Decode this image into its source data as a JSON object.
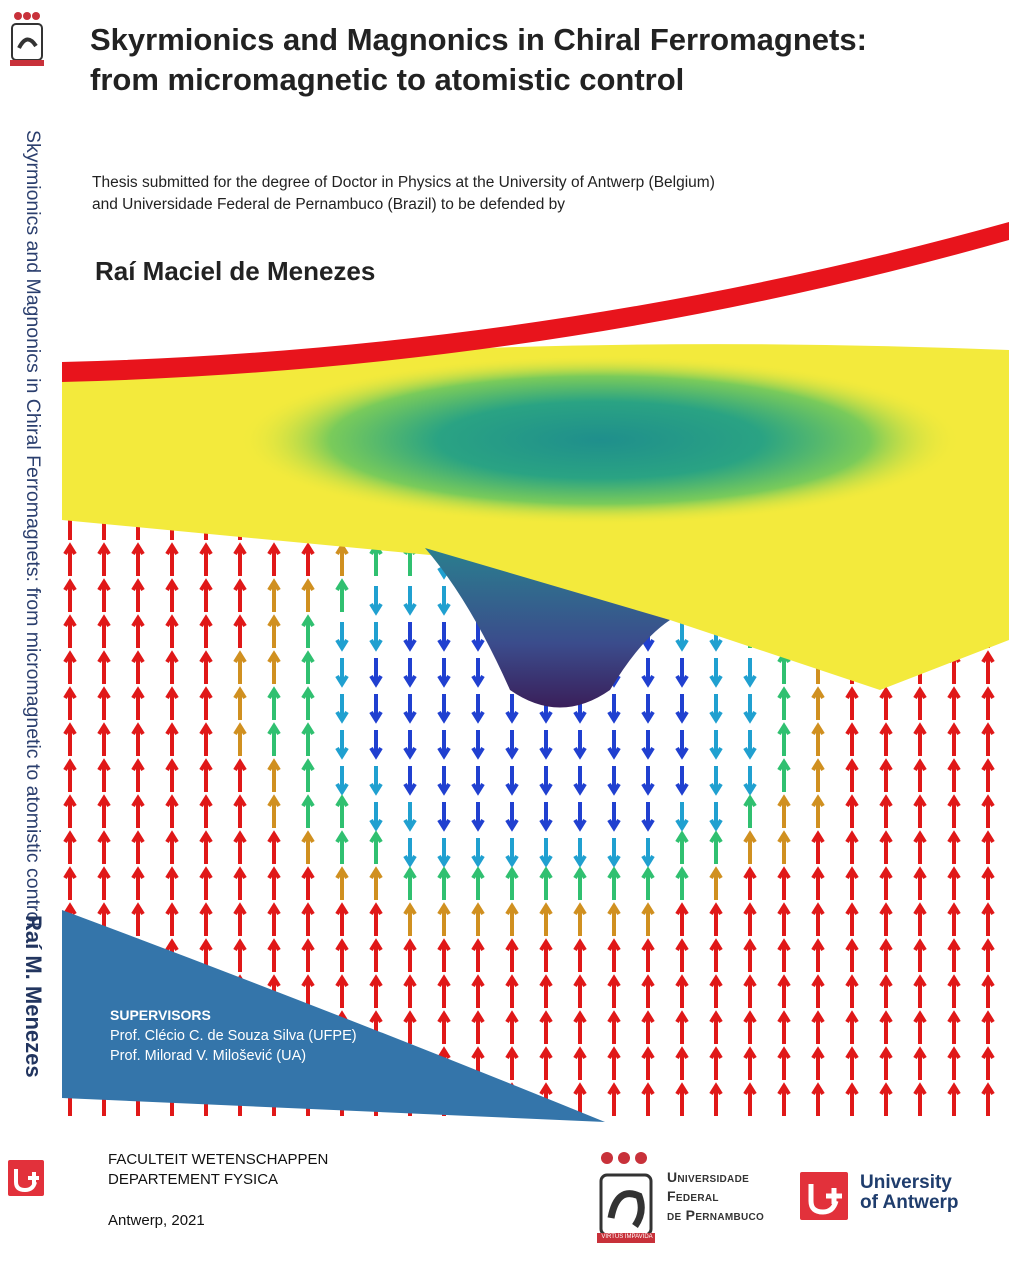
{
  "spine": {
    "title": "Skyrmionics and Magnonics in Chiral Ferromagnets: from micromagnetic to atomistic control",
    "author": "Raí M. Menezes"
  },
  "cover": {
    "title_line1": "Skyrmionics and Magnonics in Chiral Ferromagnets:",
    "title_line2": "from micromagnetic to atomistic control",
    "subtitle_line1": "Thesis submitted for the degree of Doctor in Physics at the University of Antwerp (Belgium)",
    "subtitle_line2": "and Universidade Federal de Pernambuco (Brazil) to be defended by",
    "author": "Raí Maciel de Menezes"
  },
  "supervisors": {
    "heading": "SUPERVISORS",
    "items": [
      "Prof. Clécio C. de Souza Silva (UFPE)",
      "Prof. Milorad V. Milošević (UA)"
    ]
  },
  "footer": {
    "faculty": "FACULTEIT WETENSCHAPPEN",
    "department": "DEPARTEMENT FYSICA",
    "place_date": "Antwerp, 2021",
    "ufpe_line1": "Universidade",
    "ufpe_line2": "Federal",
    "ufpe_line3": "de Pernambuco",
    "ufpe_motto": "VIRTUS IMPAVIDA",
    "ua_line1": "University",
    "ua_line2": "of Antwerp"
  },
  "colors": {
    "ua_red": "#e2313b",
    "ua_blue": "#1f3d6d",
    "supervisor_panel": "#3475aa",
    "surface_band": "#e8141c",
    "surface_plane": "#f3ea3c"
  }
}
